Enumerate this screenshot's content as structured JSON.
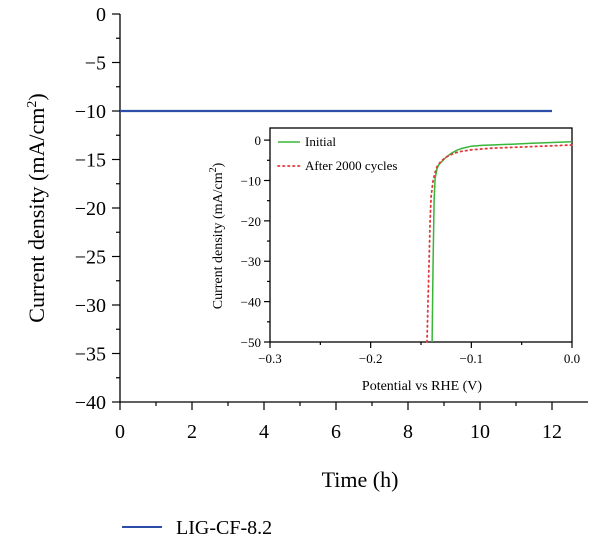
{
  "chart_data": [
    {
      "type": "line",
      "xlabel": "Time (h)",
      "ylabel": "Current density (mA/cm",
      "ylabel_sup": "2",
      "ylabel_close": ")",
      "xlim": [
        0,
        13
      ],
      "ylim": [
        -40,
        0
      ],
      "x_ticks": [
        0,
        2,
        4,
        6,
        8,
        10,
        12
      ],
      "y_ticks": [
        0,
        -5,
        -10,
        -15,
        -20,
        -25,
        -30,
        -35,
        -40
      ],
      "x_tick_labels": [
        "0",
        "2",
        "4",
        "6",
        "8",
        "10",
        "12"
      ],
      "y_tick_labels": [
        "0",
        "−5",
        "−10",
        "−15",
        "−20",
        "−25",
        "−30",
        "−35",
        "−40"
      ],
      "legend_position": "bottom",
      "series": [
        {
          "name": "LIG-CF-8.2",
          "color": "#2b4fa8",
          "x": [
            0,
            12
          ],
          "y": [
            -10,
            -10
          ]
        }
      ]
    },
    {
      "type": "line",
      "xlabel": "Potential vs RHE (V)",
      "ylabel": "Current density (mA/cm",
      "ylabel_sup": "2",
      "ylabel_close": ")",
      "xlim": [
        -0.3,
        0.0
      ],
      "ylim": [
        -50,
        3
      ],
      "x_ticks": [
        -0.3,
        -0.2,
        -0.1,
        0.0
      ],
      "y_ticks": [
        0,
        -10,
        -20,
        -30,
        -40,
        -50
      ],
      "x_tick_labels": [
        "−0.3",
        "−0.2",
        "−0.1",
        "0.0"
      ],
      "y_tick_labels": [
        "0",
        "−10",
        "−20",
        "−30",
        "−40",
        "−50"
      ],
      "legend_position": "top-left",
      "series": [
        {
          "name": "Initial",
          "color": "#39b53a",
          "style": "solid",
          "x": [
            -0.139,
            -0.138,
            -0.137,
            -0.136,
            -0.134,
            -0.132,
            -0.13,
            -0.125,
            -0.12,
            -0.115,
            -0.11,
            -0.105,
            -0.1,
            -0.09,
            -0.08,
            -0.06,
            -0.04,
            -0.02,
            0.0
          ],
          "y": [
            -50,
            -30,
            -15,
            -9.5,
            -7,
            -6,
            -5.5,
            -4.2,
            -3.3,
            -2.6,
            -2.1,
            -1.8,
            -1.5,
            -1.3,
            -1.2,
            -1.0,
            -0.8,
            -0.6,
            -0.4
          ]
        },
        {
          "name": "After 2000 cycles",
          "color": "#e23b3b",
          "style": "dotted",
          "x": [
            -0.144,
            -0.143,
            -0.142,
            -0.141,
            -0.14,
            -0.138,
            -0.136,
            -0.134,
            -0.13,
            -0.125,
            -0.12,
            -0.115,
            -0.11,
            -0.105,
            -0.1,
            -0.09,
            -0.08,
            -0.06,
            -0.04,
            -0.02,
            0.0
          ],
          "y": [
            -50,
            -40,
            -30,
            -20,
            -14,
            -10,
            -8,
            -6.5,
            -5.2,
            -4.2,
            -3.6,
            -3.1,
            -2.8,
            -2.6,
            -2.4,
            -2.2,
            -2.0,
            -1.8,
            -1.6,
            -1.4,
            -1.2
          ]
        }
      ]
    }
  ]
}
